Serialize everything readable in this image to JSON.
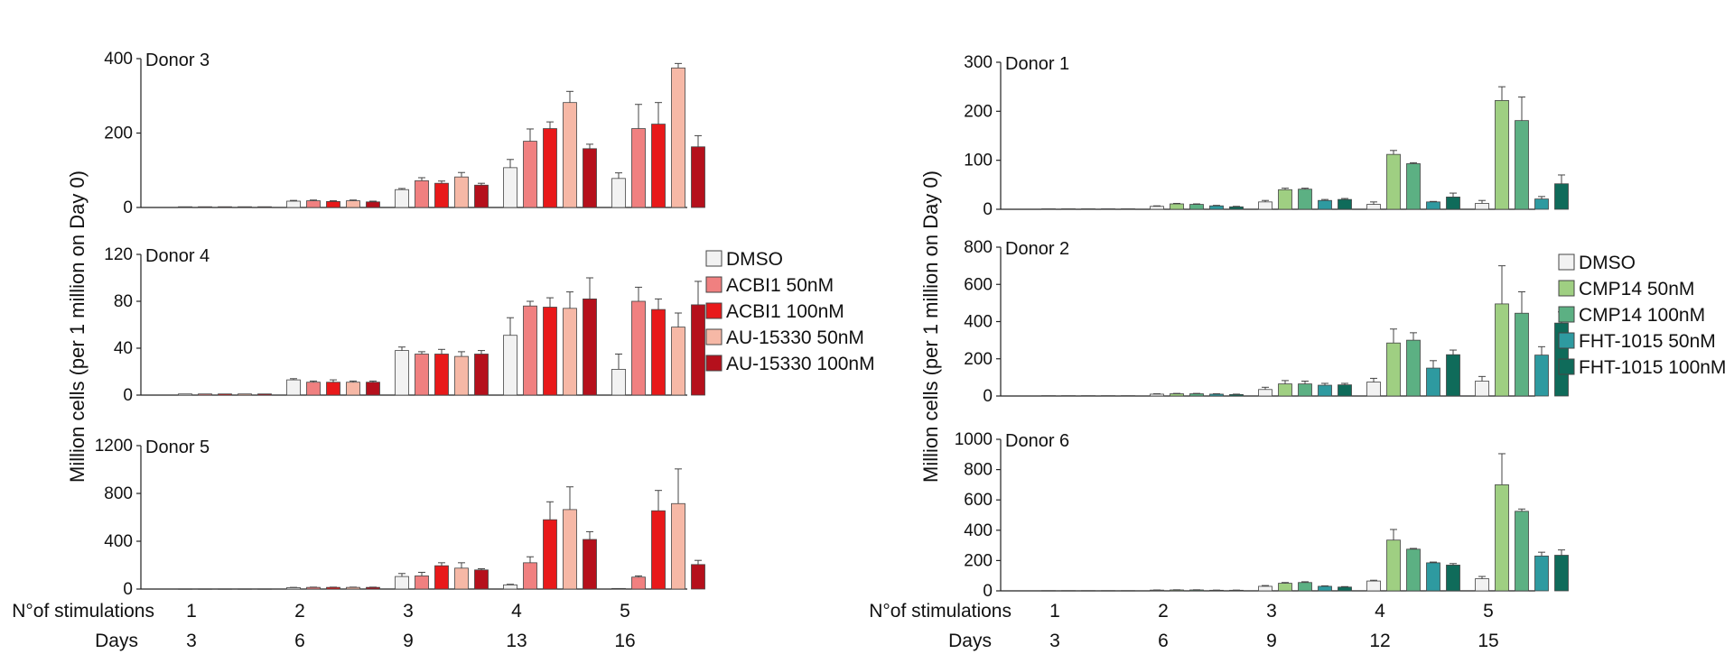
{
  "figure": {
    "y_axis_label": "Million cells (per 1 million on Day 0)",
    "row_labels": {
      "stimulations": "N°of stimulations",
      "days": "Days"
    }
  },
  "chart_data": [
    {
      "type": "bar",
      "group": "left",
      "title": "Donor 3",
      "ylim": [
        0,
        400
      ],
      "yticks": [
        0,
        200,
        400
      ],
      "categories": [
        "1",
        "2",
        "3",
        "4",
        "5"
      ],
      "days": [
        "3",
        "6",
        "9",
        "13",
        "16"
      ],
      "series": [
        {
          "name": "DMSO",
          "color": "#f2f2f2",
          "values": [
            2,
            17,
            48,
            107,
            78
          ],
          "errors": [
            0,
            2,
            3,
            22,
            15
          ]
        },
        {
          "name": "ACBI1 50nM",
          "color": "#f08080",
          "values": [
            2,
            18,
            72,
            178,
            212
          ],
          "errors": [
            0,
            2,
            8,
            33,
            65
          ]
        },
        {
          "name": "ACBI1 100nM",
          "color": "#e8191a",
          "values": [
            2,
            16,
            65,
            212,
            224
          ],
          "errors": [
            0,
            2,
            6,
            18,
            58
          ]
        },
        {
          "name": "AU-15330 50nM",
          "color": "#f6b8a6",
          "values": [
            2,
            18,
            82,
            282,
            375
          ],
          "errors": [
            0,
            2,
            12,
            30,
            12
          ]
        },
        {
          "name": "AU-15330 100nM",
          "color": "#b5101c",
          "values": [
            2,
            15,
            60,
            158,
            163
          ],
          "errors": [
            0,
            2,
            5,
            12,
            30
          ]
        }
      ]
    },
    {
      "type": "bar",
      "group": "left",
      "title": "Donor 4",
      "ylim": [
        0,
        120
      ],
      "yticks": [
        0,
        40,
        80,
        120
      ],
      "categories": [
        "1",
        "2",
        "3",
        "4",
        "5"
      ],
      "days": [
        "3",
        "6",
        "9",
        "13",
        "16"
      ],
      "series": [
        {
          "name": "DMSO",
          "color": "#f2f2f2",
          "values": [
            1,
            13,
            38,
            51,
            22
          ],
          "errors": [
            0,
            1,
            3,
            15,
            13
          ]
        },
        {
          "name": "ACBI1 50nM",
          "color": "#f08080",
          "values": [
            1,
            11,
            35,
            76,
            80
          ],
          "errors": [
            0,
            1,
            2,
            4,
            12
          ]
        },
        {
          "name": "ACBI1 100nM",
          "color": "#e8191a",
          "values": [
            1,
            11,
            35,
            75,
            73
          ],
          "errors": [
            0,
            2,
            4,
            8,
            9
          ]
        },
        {
          "name": "AU-15330 50nM",
          "color": "#f6b8a6",
          "values": [
            1,
            11,
            33,
            74,
            58
          ],
          "errors": [
            0,
            1,
            4,
            14,
            12
          ]
        },
        {
          "name": "AU-15330 100nM",
          "color": "#b5101c",
          "values": [
            1,
            11,
            35,
            82,
            77
          ],
          "errors": [
            0,
            1,
            3,
            18,
            20
          ]
        }
      ]
    },
    {
      "type": "bar",
      "group": "left",
      "title": "Donor 5",
      "ylim": [
        0,
        1200
      ],
      "yticks": [
        0,
        400,
        800,
        1200
      ],
      "categories": [
        "1",
        "2",
        "3",
        "4",
        "5"
      ],
      "days": [
        "3",
        "6",
        "9",
        "13",
        "16"
      ],
      "series": [
        {
          "name": "DMSO",
          "color": "#f2f2f2",
          "values": [
            2,
            12,
            105,
            35,
            5
          ],
          "errors": [
            0,
            2,
            25,
            5,
            0
          ]
        },
        {
          "name": "ACBI1 50nM",
          "color": "#f08080",
          "values": [
            2,
            14,
            110,
            220,
            100
          ],
          "errors": [
            0,
            2,
            30,
            50,
            10
          ]
        },
        {
          "name": "ACBI1 100nM",
          "color": "#e8191a",
          "values": [
            2,
            14,
            195,
            580,
            655
          ],
          "errors": [
            0,
            2,
            25,
            150,
            170
          ]
        },
        {
          "name": "AU-15330 50nM",
          "color": "#f6b8a6",
          "values": [
            2,
            14,
            175,
            665,
            715
          ],
          "errors": [
            0,
            2,
            45,
            190,
            290
          ]
        },
        {
          "name": "AU-15330 100nM",
          "color": "#b5101c",
          "values": [
            2,
            14,
            160,
            415,
            205
          ],
          "errors": [
            0,
            2,
            10,
            65,
            35
          ]
        }
      ]
    },
    {
      "type": "bar",
      "group": "right",
      "title": "Donor 1",
      "ylim": [
        0,
        300
      ],
      "yticks": [
        0,
        100,
        200,
        300
      ],
      "categories": [
        "1",
        "2",
        "3",
        "4",
        "5"
      ],
      "days": [
        "3",
        "6",
        "9",
        "12",
        "15"
      ],
      "series": [
        {
          "name": "DMSO",
          "color": "#f2f2f2",
          "values": [
            1,
            6,
            15,
            10,
            12
          ],
          "errors": [
            0,
            1,
            3,
            5,
            6
          ]
        },
        {
          "name": "CMP14 50nM",
          "color": "#9fcf82",
          "values": [
            1,
            11,
            40,
            112,
            222
          ],
          "errors": [
            0,
            1,
            3,
            8,
            28
          ]
        },
        {
          "name": "CMP14 100nM",
          "color": "#5cb083",
          "values": [
            1,
            10,
            41,
            93,
            181
          ],
          "errors": [
            0,
            1,
            2,
            2,
            48
          ]
        },
        {
          "name": "FHT-1015 50nM",
          "color": "#2e9aa0",
          "values": [
            1,
            7,
            18,
            15,
            21
          ],
          "errors": [
            0,
            1,
            2,
            1,
            5
          ]
        },
        {
          "name": "FHT-1015 100nM",
          "color": "#0f6b5a",
          "values": [
            1,
            5,
            20,
            25,
            52
          ],
          "errors": [
            0,
            1,
            2,
            8,
            18
          ]
        }
      ]
    },
    {
      "type": "bar",
      "group": "right",
      "title": "Donor 2",
      "ylim": [
        0,
        800
      ],
      "yticks": [
        0,
        200,
        400,
        600,
        800
      ],
      "categories": [
        "1",
        "2",
        "3",
        "4",
        "5"
      ],
      "days": [
        "3",
        "6",
        "9",
        "12",
        "15"
      ],
      "series": [
        {
          "name": "DMSO",
          "color": "#f2f2f2",
          "values": [
            2,
            10,
            35,
            75,
            80
          ],
          "errors": [
            0,
            2,
            12,
            20,
            25
          ]
        },
        {
          "name": "CMP14 50nM",
          "color": "#9fcf82",
          "values": [
            2,
            12,
            65,
            285,
            495
          ],
          "errors": [
            0,
            2,
            18,
            75,
            205
          ]
        },
        {
          "name": "CMP14 100nM",
          "color": "#5cb083",
          "values": [
            2,
            12,
            65,
            300,
            445
          ],
          "errors": [
            0,
            2,
            15,
            40,
            115
          ]
        },
        {
          "name": "FHT-1015 50nM",
          "color": "#2e9aa0",
          "values": [
            2,
            10,
            58,
            150,
            220
          ],
          "errors": [
            0,
            2,
            10,
            40,
            45
          ]
        },
        {
          "name": "FHT-1015 100nM",
          "color": "#0f6b5a",
          "values": [
            2,
            8,
            60,
            222,
            392
          ],
          "errors": [
            0,
            2,
            8,
            25,
            60
          ]
        }
      ]
    },
    {
      "type": "bar",
      "group": "right",
      "title": "Donor 6",
      "ylim": [
        0,
        1000
      ],
      "yticks": [
        0,
        200,
        400,
        600,
        800,
        1000
      ],
      "categories": [
        "1",
        "2",
        "3",
        "4",
        "5"
      ],
      "days": [
        "3",
        "6",
        "9",
        "12",
        "15"
      ],
      "series": [
        {
          "name": "DMSO",
          "color": "#f2f2f2",
          "values": [
            2,
            5,
            30,
            65,
            80
          ],
          "errors": [
            0,
            1,
            5,
            5,
            15
          ]
        },
        {
          "name": "CMP14 50nM",
          "color": "#9fcf82",
          "values": [
            2,
            6,
            50,
            335,
            700
          ],
          "errors": [
            0,
            1,
            5,
            70,
            205
          ]
        },
        {
          "name": "CMP14 100nM",
          "color": "#5cb083",
          "values": [
            2,
            6,
            55,
            275,
            525
          ],
          "errors": [
            0,
            1,
            5,
            5,
            15
          ]
        },
        {
          "name": "FHT-1015 50nM",
          "color": "#2e9aa0",
          "values": [
            2,
            4,
            30,
            185,
            230
          ],
          "errors": [
            0,
            1,
            3,
            5,
            25
          ]
        },
        {
          "name": "FHT-1015 100nM",
          "color": "#0f6b5a",
          "values": [
            2,
            4,
            25,
            170,
            235
          ],
          "errors": [
            0,
            1,
            3,
            10,
            35
          ]
        }
      ]
    }
  ]
}
